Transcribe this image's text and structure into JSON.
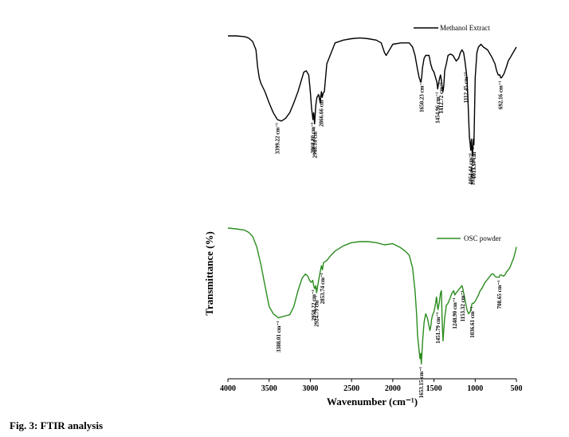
{
  "caption": "Fig. 3: FTIR analysis",
  "chart_data": {
    "type": "line",
    "xlabel": "Wavenumber (cm⁻¹)",
    "ylabel": "Transmittance (%)",
    "xlim": [
      4000,
      500
    ],
    "xticks": [
      4000,
      3500,
      3000,
      2500,
      2000,
      1500,
      1000,
      500
    ],
    "grid": false,
    "series": [
      {
        "name": "Methanol Extract",
        "color": "#000000",
        "x": [
          4000,
          3900,
          3800,
          3750,
          3700,
          3660,
          3640,
          3620,
          3600,
          3550,
          3500,
          3450,
          3400,
          3350,
          3300,
          3250,
          3200,
          3150,
          3100,
          3080,
          3050,
          3020,
          3000,
          2985,
          2968,
          2960,
          2948,
          2935,
          2920,
          2900,
          2880,
          2866,
          2855,
          2845,
          2830,
          2800,
          2700,
          2600,
          2500,
          2400,
          2300,
          2200,
          2140,
          2100,
          2080,
          2050,
          2000,
          1900,
          1800,
          1760,
          1730,
          1700,
          1680,
          1660,
          1650,
          1640,
          1620,
          1600,
          1560,
          1540,
          1520,
          1500,
          1480,
          1465,
          1455,
          1445,
          1430,
          1420,
          1410,
          1400,
          1390,
          1380,
          1370,
          1350,
          1330,
          1300,
          1270,
          1250,
          1230,
          1200,
          1180,
          1160,
          1140,
          1125,
          1112,
          1100,
          1090,
          1080,
          1070,
          1060,
          1054,
          1045,
          1035,
          1029,
          1022,
          1015,
          1000,
          980,
          960,
          930,
          900,
          850,
          800,
          760,
          740,
          720,
          700,
          692,
          680,
          650,
          620,
          600,
          570,
          540,
          520,
          500
        ],
        "y": [
          0,
          0,
          0.5,
          1.5,
          4,
          10,
          22,
          30,
          34,
          40,
          48,
          55,
          60,
          61,
          59,
          55,
          48,
          40,
          30,
          26,
          25,
          28,
          40,
          52,
          60,
          55,
          63,
          50,
          44,
          42,
          48,
          40,
          44,
          41,
          40,
          20,
          5,
          3,
          2,
          1.5,
          2,
          3,
          5,
          12,
          14,
          11,
          6,
          5,
          5,
          8,
          14,
          24,
          30,
          33,
          30,
          23,
          16,
          14,
          14,
          20,
          24,
          26,
          30,
          33,
          38,
          34,
          30,
          28,
          32,
          37,
          40,
          35,
          25,
          20,
          14,
          13,
          14,
          16,
          18,
          16,
          12,
          10,
          12,
          18,
          24,
          30,
          42,
          58,
          72,
          78,
          82,
          74,
          86,
          82,
          74,
          78,
          30,
          12,
          8,
          6,
          8,
          10,
          15,
          20,
          25,
          28,
          28,
          30,
          30,
          27,
          22,
          18,
          15,
          12,
          10,
          8
        ],
        "peaks": [
          {
            "x": 3399.22,
            "label": "3399.22 cm⁻¹"
          },
          {
            "x": 2968.8,
            "label": "2968.80 cm⁻¹"
          },
          {
            "x": 2948.14,
            "label": "2948.14 cm⁻¹"
          },
          {
            "x": 2866.66,
            "label": "2866.66 cm⁻¹"
          },
          {
            "x": 1650.23,
            "label": "1650.23 cm⁻¹"
          },
          {
            "x": 1454.96,
            "label": "1454.96 cm⁻¹"
          },
          {
            "x": 1412.72,
            "label": "1412.72 cm⁻¹"
          },
          {
            "x": 1112.45,
            "label": "1112.45 cm⁻¹"
          },
          {
            "x": 1054.44,
            "label": "1054.44 cm⁻¹"
          },
          {
            "x": 1029.71,
            "label": "1029.71 cm⁻¹"
          },
          {
            "x": 1015.57,
            "label": "1015.57 cm⁻¹"
          },
          {
            "x": 692.16,
            "label": "692.16 cm⁻¹"
          }
        ]
      },
      {
        "name": "OSC powder",
        "color": "#2a8c1e",
        "x": [
          4000,
          3900,
          3800,
          3750,
          3700,
          3650,
          3600,
          3550,
          3500,
          3450,
          3400,
          3388,
          3350,
          3300,
          3250,
          3200,
          3150,
          3100,
          3060,
          3030,
          3010,
          2990,
          2970,
          2958,
          2945,
          2935,
          2924,
          2910,
          2895,
          2880,
          2865,
          2853,
          2840,
          2820,
          2800,
          2750,
          2700,
          2600,
          2500,
          2400,
          2300,
          2200,
          2100,
          2000,
          1900,
          1850,
          1800,
          1760,
          1730,
          1710,
          1700,
          1690,
          1680,
          1670,
          1660,
          1653,
          1645,
          1635,
          1620,
          1600,
          1580,
          1560,
          1550,
          1540,
          1530,
          1520,
          1500,
          1480,
          1470,
          1465,
          1460,
          1451,
          1440,
          1430,
          1420,
          1410,
          1400,
          1390,
          1380,
          1370,
          1350,
          1330,
          1300,
          1280,
          1260,
          1248,
          1230,
          1210,
          1190,
          1170,
          1160,
          1153,
          1140,
          1120,
          1100,
          1080,
          1060,
          1050,
          1036,
          1020,
          1000,
          980,
          960,
          940,
          920,
          900,
          880,
          860,
          840,
          820,
          800,
          780,
          760,
          740,
          720,
          708,
          700,
          680,
          660,
          640,
          620,
          600,
          580,
          560,
          540,
          520,
          500
        ],
        "y": [
          0,
          0.8,
          2,
          4,
          8,
          18,
          35,
          55,
          75,
          82,
          85,
          86,
          85,
          84,
          83,
          75,
          60,
          48,
          44,
          46,
          50,
          52,
          50,
          56,
          58,
          55,
          62,
          55,
          48,
          42,
          36,
          40,
          33,
          32,
          31,
          26,
          22,
          17,
          14,
          13,
          13,
          14,
          16,
          15,
          19,
          22,
          26,
          38,
          60,
          84,
          102,
          110,
          118,
          125,
          120,
          130,
          118,
          105,
          90,
          82,
          86,
          94,
          98,
          95,
          88,
          84,
          80,
          72,
          66,
          68,
          74,
          78,
          73,
          68,
          62,
          60,
          90,
          108,
          96,
          86,
          74,
          72,
          66,
          62,
          60,
          64,
          62,
          60,
          58,
          56,
          55,
          57,
          62,
          70,
          78,
          82,
          80,
          76,
          72,
          72,
          70,
          67,
          64,
          60,
          58,
          55,
          52,
          50,
          48,
          46,
          44,
          44,
          46,
          47,
          47,
          47,
          45,
          45,
          46,
          45,
          42,
          40,
          38,
          34,
          30,
          25,
          18
        ],
        "peaks": [
          {
            "x": 3388.01,
            "label": "3388.01 cm⁻¹"
          },
          {
            "x": 2958.22,
            "label": "2958.22 cm⁻¹"
          },
          {
            "x": 2924.79,
            "label": "2924.79 cm⁻¹"
          },
          {
            "x": 2853.74,
            "label": "2853.74 cm⁻¹"
          },
          {
            "x": 1653.15,
            "label": "1653.15 cm⁻¹"
          },
          {
            "x": 1451.79,
            "label": "1451.79 cm⁻¹"
          },
          {
            "x": 1248.9,
            "label": "1248.90 cm⁻¹"
          },
          {
            "x": 1153.32,
            "label": "1153.32 cm⁻¹"
          },
          {
            "x": 1036.61,
            "label": "1036.61 cm⁻¹"
          },
          {
            "x": 708.65,
            "label": "708.65 cm⁻¹"
          }
        ]
      }
    ]
  }
}
